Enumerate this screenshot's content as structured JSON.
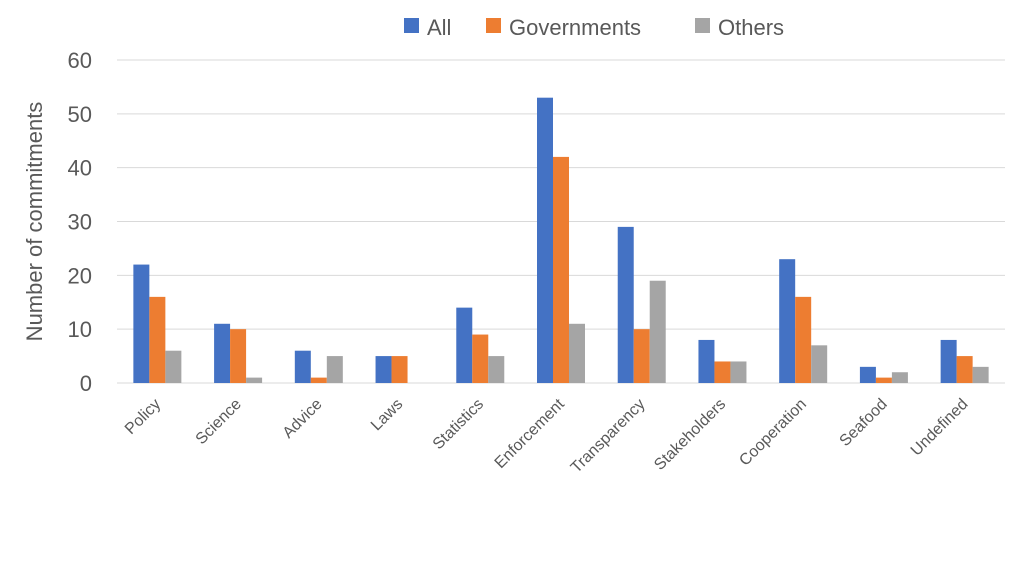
{
  "chart_data": {
    "type": "bar",
    "title": "",
    "xlabel": "",
    "ylabel": "Number of commitments",
    "ylim": [
      0,
      60
    ],
    "yticks": [
      0,
      10,
      20,
      30,
      40,
      50,
      60
    ],
    "grid": true,
    "legend_position": "top-center",
    "categories": [
      "Policy",
      "Science",
      "Advice",
      "Laws",
      "Statistics",
      "Enforcement",
      "Transparency",
      "Stakeholders",
      "Cooperation",
      "Seafood",
      "Undefined"
    ],
    "series": [
      {
        "name": "All",
        "color": "#4472C4",
        "values": [
          22,
          11,
          6,
          5,
          14,
          53,
          29,
          8,
          23,
          3,
          8
        ]
      },
      {
        "name": "Governments",
        "color": "#ED7D31",
        "values": [
          16,
          10,
          1,
          5,
          9,
          42,
          10,
          4,
          16,
          1,
          5
        ]
      },
      {
        "name": "Others",
        "color": "#A5A5A5",
        "values": [
          6,
          1,
          5,
          0,
          5,
          11,
          19,
          4,
          7,
          2,
          3
        ]
      }
    ]
  }
}
